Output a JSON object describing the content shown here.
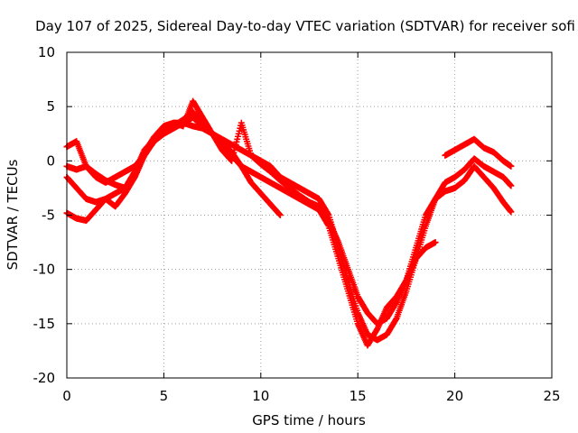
{
  "chart_data": {
    "type": "scatter",
    "title": "Day 107 of 2025, Sidereal Day-to-day VTEC variation (SDTVAR) for receiver sofi",
    "xlabel": "GPS time / hours",
    "ylabel": "SDTVAR / TECUs",
    "xlim": [
      0,
      25
    ],
    "ylim": [
      -20,
      10
    ],
    "x_ticks": [
      "0",
      "5",
      "10",
      "15",
      "20",
      "25"
    ],
    "y_ticks": [
      "-20",
      "-15",
      "-10",
      "-5",
      "0",
      "5",
      "10"
    ],
    "grid": true,
    "marker": "+",
    "color": "#ff0000",
    "series": [
      {
        "name": "s1",
        "x": [
          0.0,
          0.5,
          1.0,
          1.5,
          2.0,
          2.5,
          3.0,
          3.5,
          4.0,
          4.5,
          5.0,
          5.5,
          6.0,
          6.5,
          7.0,
          7.5,
          8.0,
          8.5,
          9.0,
          9.5,
          10.0,
          10.5,
          11.0,
          11.5,
          12.0,
          12.5,
          13.0,
          13.5,
          14.0,
          14.5,
          15.0,
          15.5,
          16.0,
          16.5,
          17.0,
          17.5,
          18.0,
          18.5,
          19.0,
          19.5,
          20.0,
          20.5,
          21.0,
          21.5,
          22.0,
          22.5,
          22.9
        ],
        "y": [
          1.3,
          1.8,
          -0.5,
          -1.5,
          -2.0,
          -1.5,
          -1.0,
          -0.5,
          0.5,
          2.0,
          3.0,
          3.5,
          3.5,
          3.2,
          3.0,
          2.5,
          2.0,
          1.5,
          1.0,
          0.5,
          0.0,
          -0.5,
          -1.5,
          -2.0,
          -2.5,
          -3.0,
          -3.5,
          -5.0,
          -8.0,
          -11.0,
          -14.0,
          -16.0,
          -16.5,
          -16.0,
          -14.5,
          -12.0,
          -9.0,
          -6.0,
          -3.5,
          -2.0,
          -1.5,
          -0.8,
          0.2,
          -0.5,
          -1.0,
          -1.5,
          -2.3
        ]
      },
      {
        "name": "s2",
        "x": [
          0.0,
          0.5,
          1.0,
          1.5,
          2.0,
          2.5,
          3.0,
          3.5,
          4.0,
          4.5,
          5.0,
          5.5,
          6.0,
          6.5,
          7.0,
          7.5,
          8.0,
          8.5,
          9.0,
          9.5,
          10.0,
          10.5,
          11.0,
          11.5,
          12.0,
          12.5,
          13.0,
          13.5,
          14.0,
          14.5,
          15.0,
          15.5,
          16.0,
          16.5,
          17.0,
          17.5,
          18.0,
          18.5,
          19.0,
          19.5,
          20.0,
          20.5,
          21.0,
          21.5,
          22.0,
          22.5,
          22.9
        ],
        "y": [
          -1.5,
          -2.5,
          -3.5,
          -3.8,
          -3.5,
          -3.0,
          -2.5,
          -1.0,
          1.0,
          2.0,
          2.8,
          3.2,
          3.8,
          4.5,
          3.5,
          2.5,
          1.5,
          0.5,
          -0.5,
          -1.0,
          -1.5,
          -2.0,
          -2.5,
          -3.0,
          -3.5,
          -4.0,
          -4.5,
          -6.0,
          -9.0,
          -12.0,
          -15.0,
          -17.0,
          -15.5,
          -13.5,
          -12.5,
          -11.0,
          -8.0,
          -5.0,
          -3.5,
          -2.8,
          -2.5,
          -1.8,
          -0.5,
          -1.5,
          -2.5,
          -3.8,
          -4.7
        ]
      },
      {
        "name": "s3",
        "x": [
          0.0,
          0.5,
          1.0,
          1.5,
          2.0,
          2.5,
          3.0,
          3.5,
          4.0,
          4.5,
          5.0,
          5.5,
          6.0,
          6.5,
          7.0,
          7.5,
          8.0,
          8.5,
          9.0,
          9.5,
          10.0,
          10.5,
          11.0
        ],
        "y": [
          -4.8,
          -5.3,
          -5.5,
          -4.5,
          -3.5,
          -4.2,
          -3.0,
          -1.5,
          0.5,
          1.8,
          2.5,
          3.0,
          3.5,
          4.0,
          3.2,
          2.5,
          1.8,
          0.8,
          -0.5,
          -2.0,
          -3.0,
          -4.0,
          -5.0
        ]
      },
      {
        "name": "s4",
        "x": [
          0.0,
          0.5,
          1.0,
          1.5,
          2.0,
          2.5,
          3.0,
          3.5,
          4.0,
          4.5,
          5.0,
          5.5,
          6.0,
          6.5,
          7.0,
          7.5,
          8.0,
          8.5,
          9.0,
          9.5,
          10.0,
          10.5,
          11.0,
          11.5,
          12.0,
          12.5,
          13.0,
          13.5,
          14.0,
          14.5,
          15.0,
          15.5,
          16.0,
          16.5,
          17.0,
          17.5,
          18.0,
          18.5,
          19.0
        ],
        "y": [
          -0.5,
          -0.8,
          -0.5,
          -1.2,
          -1.8,
          -2.2,
          -2.5,
          -1.5,
          0.8,
          2.2,
          3.2,
          3.5,
          3.2,
          5.5,
          4.0,
          2.5,
          1.0,
          0.0,
          3.5,
          0.5,
          -0.3,
          -1.0,
          -1.8,
          -2.5,
          -3.2,
          -3.8,
          -4.2,
          -5.5,
          -7.5,
          -10.0,
          -12.5,
          -14.0,
          -15.0,
          -14.5,
          -13.0,
          -11.0,
          -9.0,
          -8.0,
          -7.5
        ]
      },
      {
        "name": "s5",
        "x": [
          19.5,
          20.0,
          20.5,
          21.0,
          21.5,
          22.0,
          22.5,
          22.9
        ],
        "y": [
          0.5,
          1.0,
          1.5,
          2.0,
          1.2,
          0.8,
          0.0,
          -0.5
        ]
      }
    ]
  }
}
